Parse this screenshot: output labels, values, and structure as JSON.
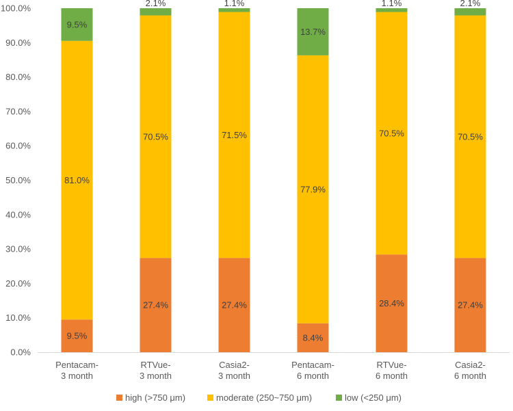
{
  "chart_data": {
    "type": "stacked-bar",
    "title": "",
    "xlabel": "",
    "ylabel": "",
    "ylim": [
      0,
      100
    ],
    "y_ticks": [
      "0.0%",
      "10.0%",
      "20.0%",
      "30.0%",
      "40.0%",
      "50.0%",
      "60.0%",
      "70.0%",
      "80.0%",
      "90.0%",
      "100.0%"
    ],
    "categories": [
      [
        "Pentacam-",
        "3 month"
      ],
      [
        "RTVue-",
        "3 month"
      ],
      [
        "Casia2-",
        "3 month"
      ],
      [
        "Pentacam-",
        "6 month"
      ],
      [
        "RTVue-",
        "6 month"
      ],
      [
        "Casia2-",
        "6 month"
      ]
    ],
    "series": [
      {
        "name": "high (>750 μm)",
        "color": "#ED7D31",
        "values": [
          9.5,
          27.4,
          27.4,
          8.4,
          28.4,
          27.4
        ],
        "labels": [
          "9.5%",
          "27.4%",
          "27.4%",
          "8.4%",
          "28.4%",
          "27.4%"
        ]
      },
      {
        "name": "moderate (250~750 μm)",
        "color": "#FFC000",
        "values": [
          81.0,
          70.5,
          71.5,
          77.9,
          70.5,
          70.5
        ],
        "labels": [
          "81.0%",
          "70.5%",
          "71.5%",
          "77.9%",
          "70.5%",
          "70.5%"
        ]
      },
      {
        "name": "low (<250 μm)",
        "color": "#70AD47",
        "values": [
          9.5,
          2.1,
          1.1,
          13.7,
          1.1,
          2.1
        ],
        "labels": [
          "9.5%",
          "2.1%",
          "1.1%",
          "13.7%",
          "1.1%",
          "2.1%"
        ]
      }
    ],
    "legend_position": "bottom",
    "grid": false
  }
}
